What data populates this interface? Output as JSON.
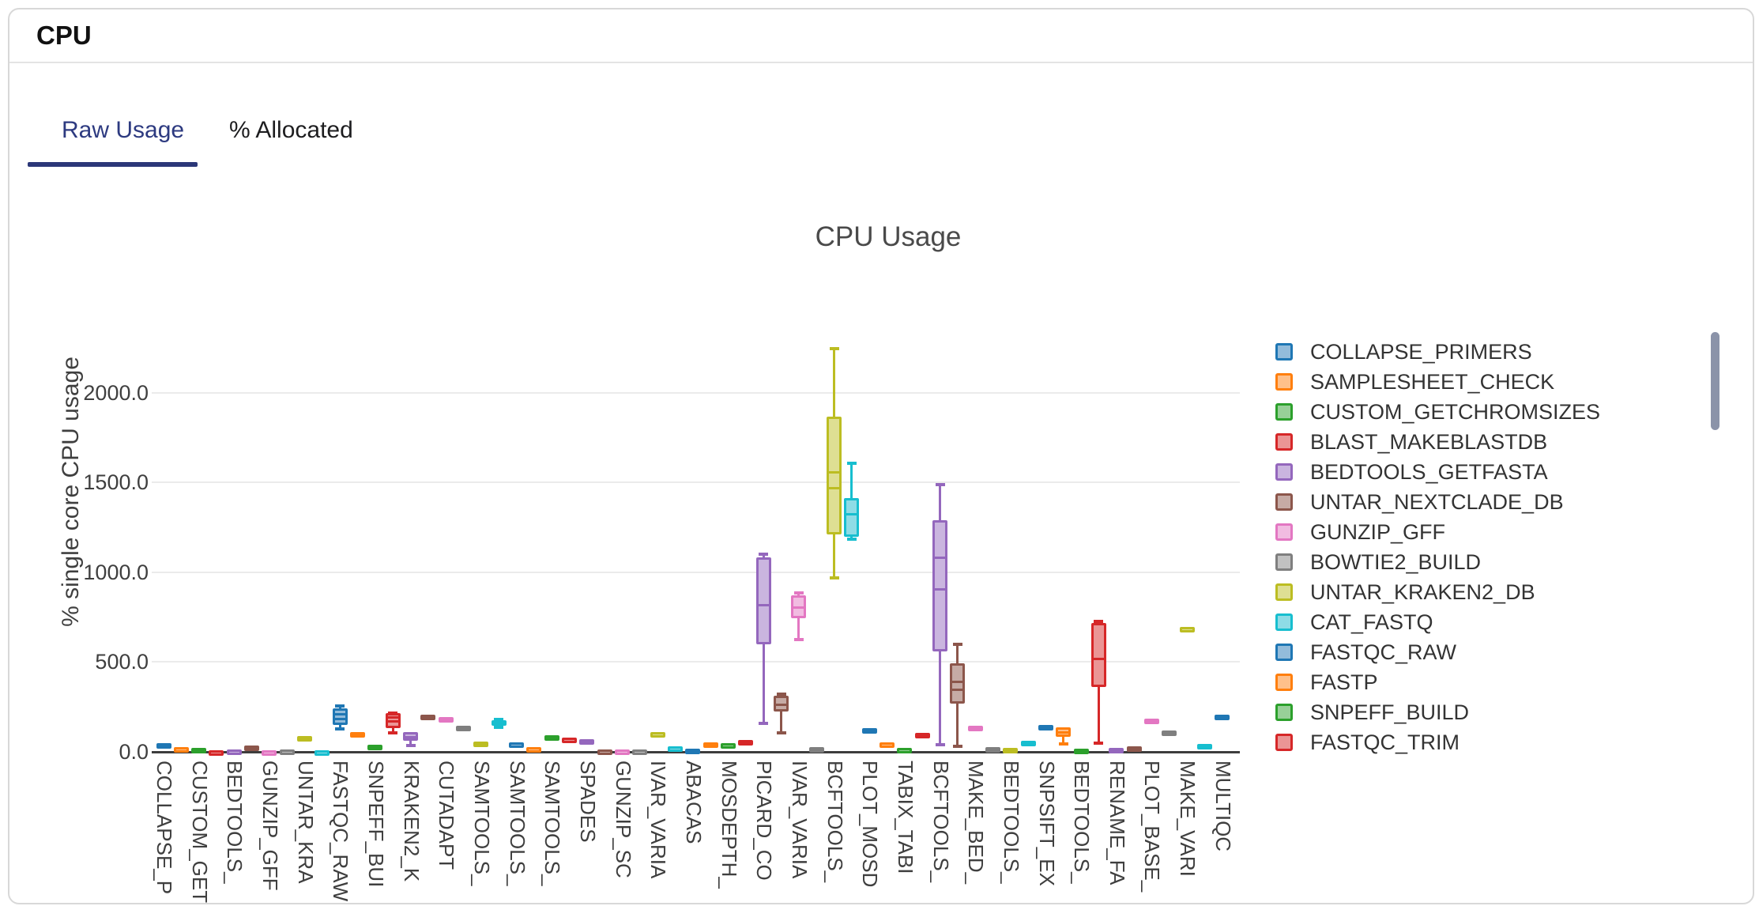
{
  "card": {
    "title": "CPU"
  },
  "tabs": {
    "items": [
      {
        "label": "Raw Usage",
        "active": true
      },
      {
        "label": "% Allocated",
        "active": false
      }
    ]
  },
  "scrollbar_color": "#8b93a9",
  "chart_data": {
    "type": "box",
    "title": "CPU Usage",
    "ylabel": "% single core CPU usage",
    "xlabel": "",
    "grid": true,
    "legend_position": "right",
    "ylim": [
      0,
      2330
    ],
    "ytick_values": [
      0,
      500,
      1000,
      1500,
      2000
    ],
    "ytick_labels": [
      "0.0",
      "500.0",
      "1000.0",
      "1500.0",
      "2000.0"
    ],
    "xtick_labels": [
      "COLLAPSE_P",
      "CUSTOM_GET",
      "BEDTOOLS_",
      "GUNZIP_GFF",
      "UNTAR_KRA",
      "FASTQC_RAW",
      "SNPEFF_BUI",
      "KRAKEN2_K",
      "CUTADAPT",
      "SAMTOOLS_",
      "SAMTOOLS_",
      "SAMTOOLS_",
      "SPADES",
      "GUNZIP_SC",
      "IVAR_VARIA",
      "ABACAS",
      "MOSDEPTH_",
      "PICARD_CO",
      "IVAR_VARIA",
      "BCFTOOLS_",
      "PLOT_MOSD",
      "TABIX_TABI",
      "BCFTOOLS_",
      "MAKE_BED_",
      "BEDTOOLS_",
      "SNPSIFT_EX",
      "BEDTOOLS_",
      "RENAME_FA",
      "PLOT_BASE_",
      "MAKE_VARI",
      "MULTIQC"
    ],
    "palette_border": [
      "#1f77b4",
      "#ff7f0e",
      "#2ca02c",
      "#d62728",
      "#9467bd",
      "#8c564b",
      "#e377c2",
      "#7f7f7f",
      "#bcbd22",
      "#17becf"
    ],
    "palette_fill": [
      "#93bcdb",
      "#ffc08a",
      "#98d098",
      "#eb9595",
      "#cab5df",
      "#c6aba5",
      "#f1bce1",
      "#c1c1c1",
      "#dedf93",
      "#8edce6"
    ],
    "legend": [
      {
        "name": "COLLAPSE_PRIMERS",
        "color_index": 0
      },
      {
        "name": "SAMPLESHEET_CHECK",
        "color_index": 1
      },
      {
        "name": "CUSTOM_GETCHROMSIZES",
        "color_index": 2
      },
      {
        "name": "BLAST_MAKEBLASTDB",
        "color_index": 3
      },
      {
        "name": "BEDTOOLS_GETFASTA",
        "color_index": 4
      },
      {
        "name": "UNTAR_NEXTCLADE_DB",
        "color_index": 5
      },
      {
        "name": "GUNZIP_GFF",
        "color_index": 6
      },
      {
        "name": "BOWTIE2_BUILD",
        "color_index": 7
      },
      {
        "name": "UNTAR_KRAKEN2_DB",
        "color_index": 8
      },
      {
        "name": "CAT_FASTQ",
        "color_index": 9
      },
      {
        "name": "FASTQC_RAW",
        "color_index": 0
      },
      {
        "name": "FASTP",
        "color_index": 1
      },
      {
        "name": "SNPEFF_BUILD",
        "color_index": 2
      },
      {
        "name": "FASTQC_TRIM",
        "color_index": 3
      }
    ],
    "boxes": [
      {
        "v": [
          32,
          32,
          40,
          48,
          48
        ]
      },
      {
        "v": [
          14,
          14,
          21,
          28,
          28
        ]
      },
      {
        "v": [
          8,
          8,
          14,
          20,
          20
        ]
      },
      {
        "v": [
          2,
          2,
          6,
          10,
          10
        ]
      },
      {
        "v": [
          2,
          2,
          7,
          12,
          12
        ]
      },
      {
        "v": [
          20,
          20,
          28,
          35,
          35
        ]
      },
      {
        "v": [
          1,
          1,
          4,
          8,
          8
        ]
      },
      {
        "v": [
          4,
          4,
          9,
          14,
          14
        ]
      },
      {
        "v": [
          72,
          72,
          80,
          88,
          88
        ]
      },
      {
        "v": [
          2,
          2,
          5,
          9,
          9
        ]
      },
      {
        "v": [
          127,
          150,
          185,
          241,
          260
        ],
        "m2": 212
      },
      {
        "v": [
          90,
          90,
          99,
          108,
          108
        ]
      },
      {
        "v": [
          22,
          22,
          30,
          38,
          38
        ]
      },
      {
        "v": [
          105,
          132,
          172,
          215,
          222
        ],
        "m2": 194
      },
      {
        "v": [
          35,
          62,
          85,
          110,
          112
        ]
      },
      {
        "v": [
          192,
          192,
          199,
          206,
          206
        ]
      },
      {
        "v": [
          165,
          168,
          180,
          192,
          195
        ]
      },
      {
        "v": [
          126,
          126,
          136,
          146,
          146
        ]
      },
      {
        "v": [
          42,
          42,
          50,
          58,
          58
        ]
      },
      {
        "v": [
          135,
          148,
          162,
          177,
          186
        ]
      },
      {
        "v": [
          39,
          39,
          47,
          55,
          55
        ]
      },
      {
        "v": [
          15,
          15,
          21,
          28,
          28
        ]
      },
      {
        "v": [
          75,
          75,
          83,
          91,
          91
        ]
      },
      {
        "v": [
          65,
          65,
          73,
          81,
          81
        ]
      },
      {
        "v": [
          53,
          53,
          61,
          69,
          69
        ]
      },
      {
        "v": [
          3,
          3,
          8,
          14,
          14
        ]
      },
      {
        "v": [
          2,
          2,
          7,
          13,
          13
        ]
      },
      {
        "v": [
          2,
          2,
          7,
          12,
          12
        ]
      },
      {
        "v": [
          97,
          97,
          104,
          112,
          112
        ]
      },
      {
        "v": [
          19,
          19,
          26,
          33,
          33
        ]
      },
      {
        "v": [
          4,
          4,
          10,
          16,
          16
        ]
      },
      {
        "v": [
          36,
          36,
          43,
          51,
          51
        ]
      },
      {
        "v": [
          35,
          35,
          42,
          50,
          50
        ]
      },
      {
        "v": [
          48,
          48,
          56,
          64,
          64
        ]
      },
      {
        "v": [
          160,
          600,
          820,
          1085,
          1105
        ]
      },
      {
        "v": [
          106,
          225,
          266,
          313,
          326
        ]
      },
      {
        "v": [
          626,
          745,
          806,
          873,
          890
        ]
      },
      {
        "v": [
          11,
          11,
          18,
          25,
          25
        ]
      },
      {
        "v": [
          969,
          1210,
          1472,
          1868,
          2248
        ],
        "m2": 1560
      },
      {
        "v": [
          1185,
          1198,
          1326,
          1415,
          1612
        ]
      },
      {
        "v": [
          115,
          115,
          122,
          130,
          130
        ]
      },
      {
        "v": [
          40,
          40,
          47,
          55,
          55
        ]
      },
      {
        "v": [
          11,
          11,
          17,
          24,
          24
        ]
      },
      {
        "v": [
          89,
          89,
          96,
          104,
          104
        ]
      },
      {
        "v": [
          40,
          560,
          908,
          1291,
          1494
        ],
        "m2": 1084
      },
      {
        "v": [
          31,
          269,
          348,
          494,
          604
        ],
        "m2": 392
      },
      {
        "v": [
          118,
          118,
          130,
          145,
          145
        ]
      },
      {
        "v": [
          11,
          11,
          18,
          25,
          25
        ]
      },
      {
        "v": [
          8,
          8,
          14,
          21,
          21
        ]
      },
      {
        "v": [
          45,
          45,
          52,
          60,
          60
        ]
      },
      {
        "v": [
          132,
          132,
          140,
          148,
          148
        ]
      },
      {
        "v": [
          45,
          84,
          110,
          137,
          137
        ]
      },
      {
        "v": [
          3,
          3,
          9,
          16,
          16
        ]
      },
      {
        "v": [
          48,
          361,
          520,
          718,
          731
        ]
      },
      {
        "v": [
          8,
          8,
          15,
          22,
          22
        ]
      },
      {
        "v": [
          14,
          14,
          21,
          29,
          29
        ]
      },
      {
        "v": [
          163,
          163,
          174,
          185,
          185
        ]
      },
      {
        "v": [
          101,
          101,
          109,
          118,
          118
        ]
      },
      {
        "v": [
          683,
          683,
          690,
          697,
          697
        ]
      },
      {
        "v": [
          27,
          27,
          34,
          42,
          42
        ]
      },
      {
        "v": [
          192,
          192,
          200,
          208,
          208
        ]
      }
    ]
  }
}
